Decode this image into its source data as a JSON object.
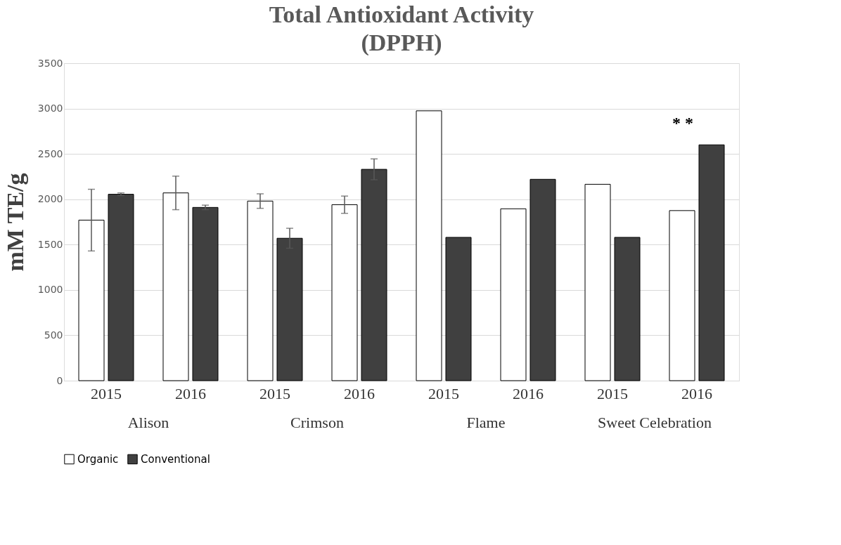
{
  "chart_data": {
    "type": "bar",
    "title": "Total Antioxidant Activity\n(DPPH)",
    "ylabel": "mM TE/g",
    "categories": [
      "2015",
      "2016",
      "2015",
      "2016",
      "2015",
      "2016",
      "2015",
      "2016"
    ],
    "series": [
      {
        "name": "Organic",
        "color": "#ffffff",
        "values": [
          1770,
          2070,
          1980,
          1940,
          2975,
          1895,
          2165,
          1875
        ],
        "errors": [
          340,
          185,
          80,
          95,
          null,
          null,
          null,
          null
        ]
      },
      {
        "name": "Conventional",
        "color": "#404040",
        "values": [
          2055,
          1910,
          1570,
          2330,
          1580,
          2220,
          1580,
          2600
        ],
        "errors": [
          15,
          25,
          110,
          115,
          null,
          null,
          null,
          null
        ]
      }
    ],
    "annotations": [
      "Alison",
      "Crimson",
      "Flame",
      "Sweet Celebration",
      "* *"
    ],
    "ylim": [
      0,
      3500
    ],
    "yticks": [
      0,
      500,
      1000,
      1500,
      2000,
      2500,
      3000,
      3500
    ],
    "grid": "y",
    "legend": "bottom"
  }
}
